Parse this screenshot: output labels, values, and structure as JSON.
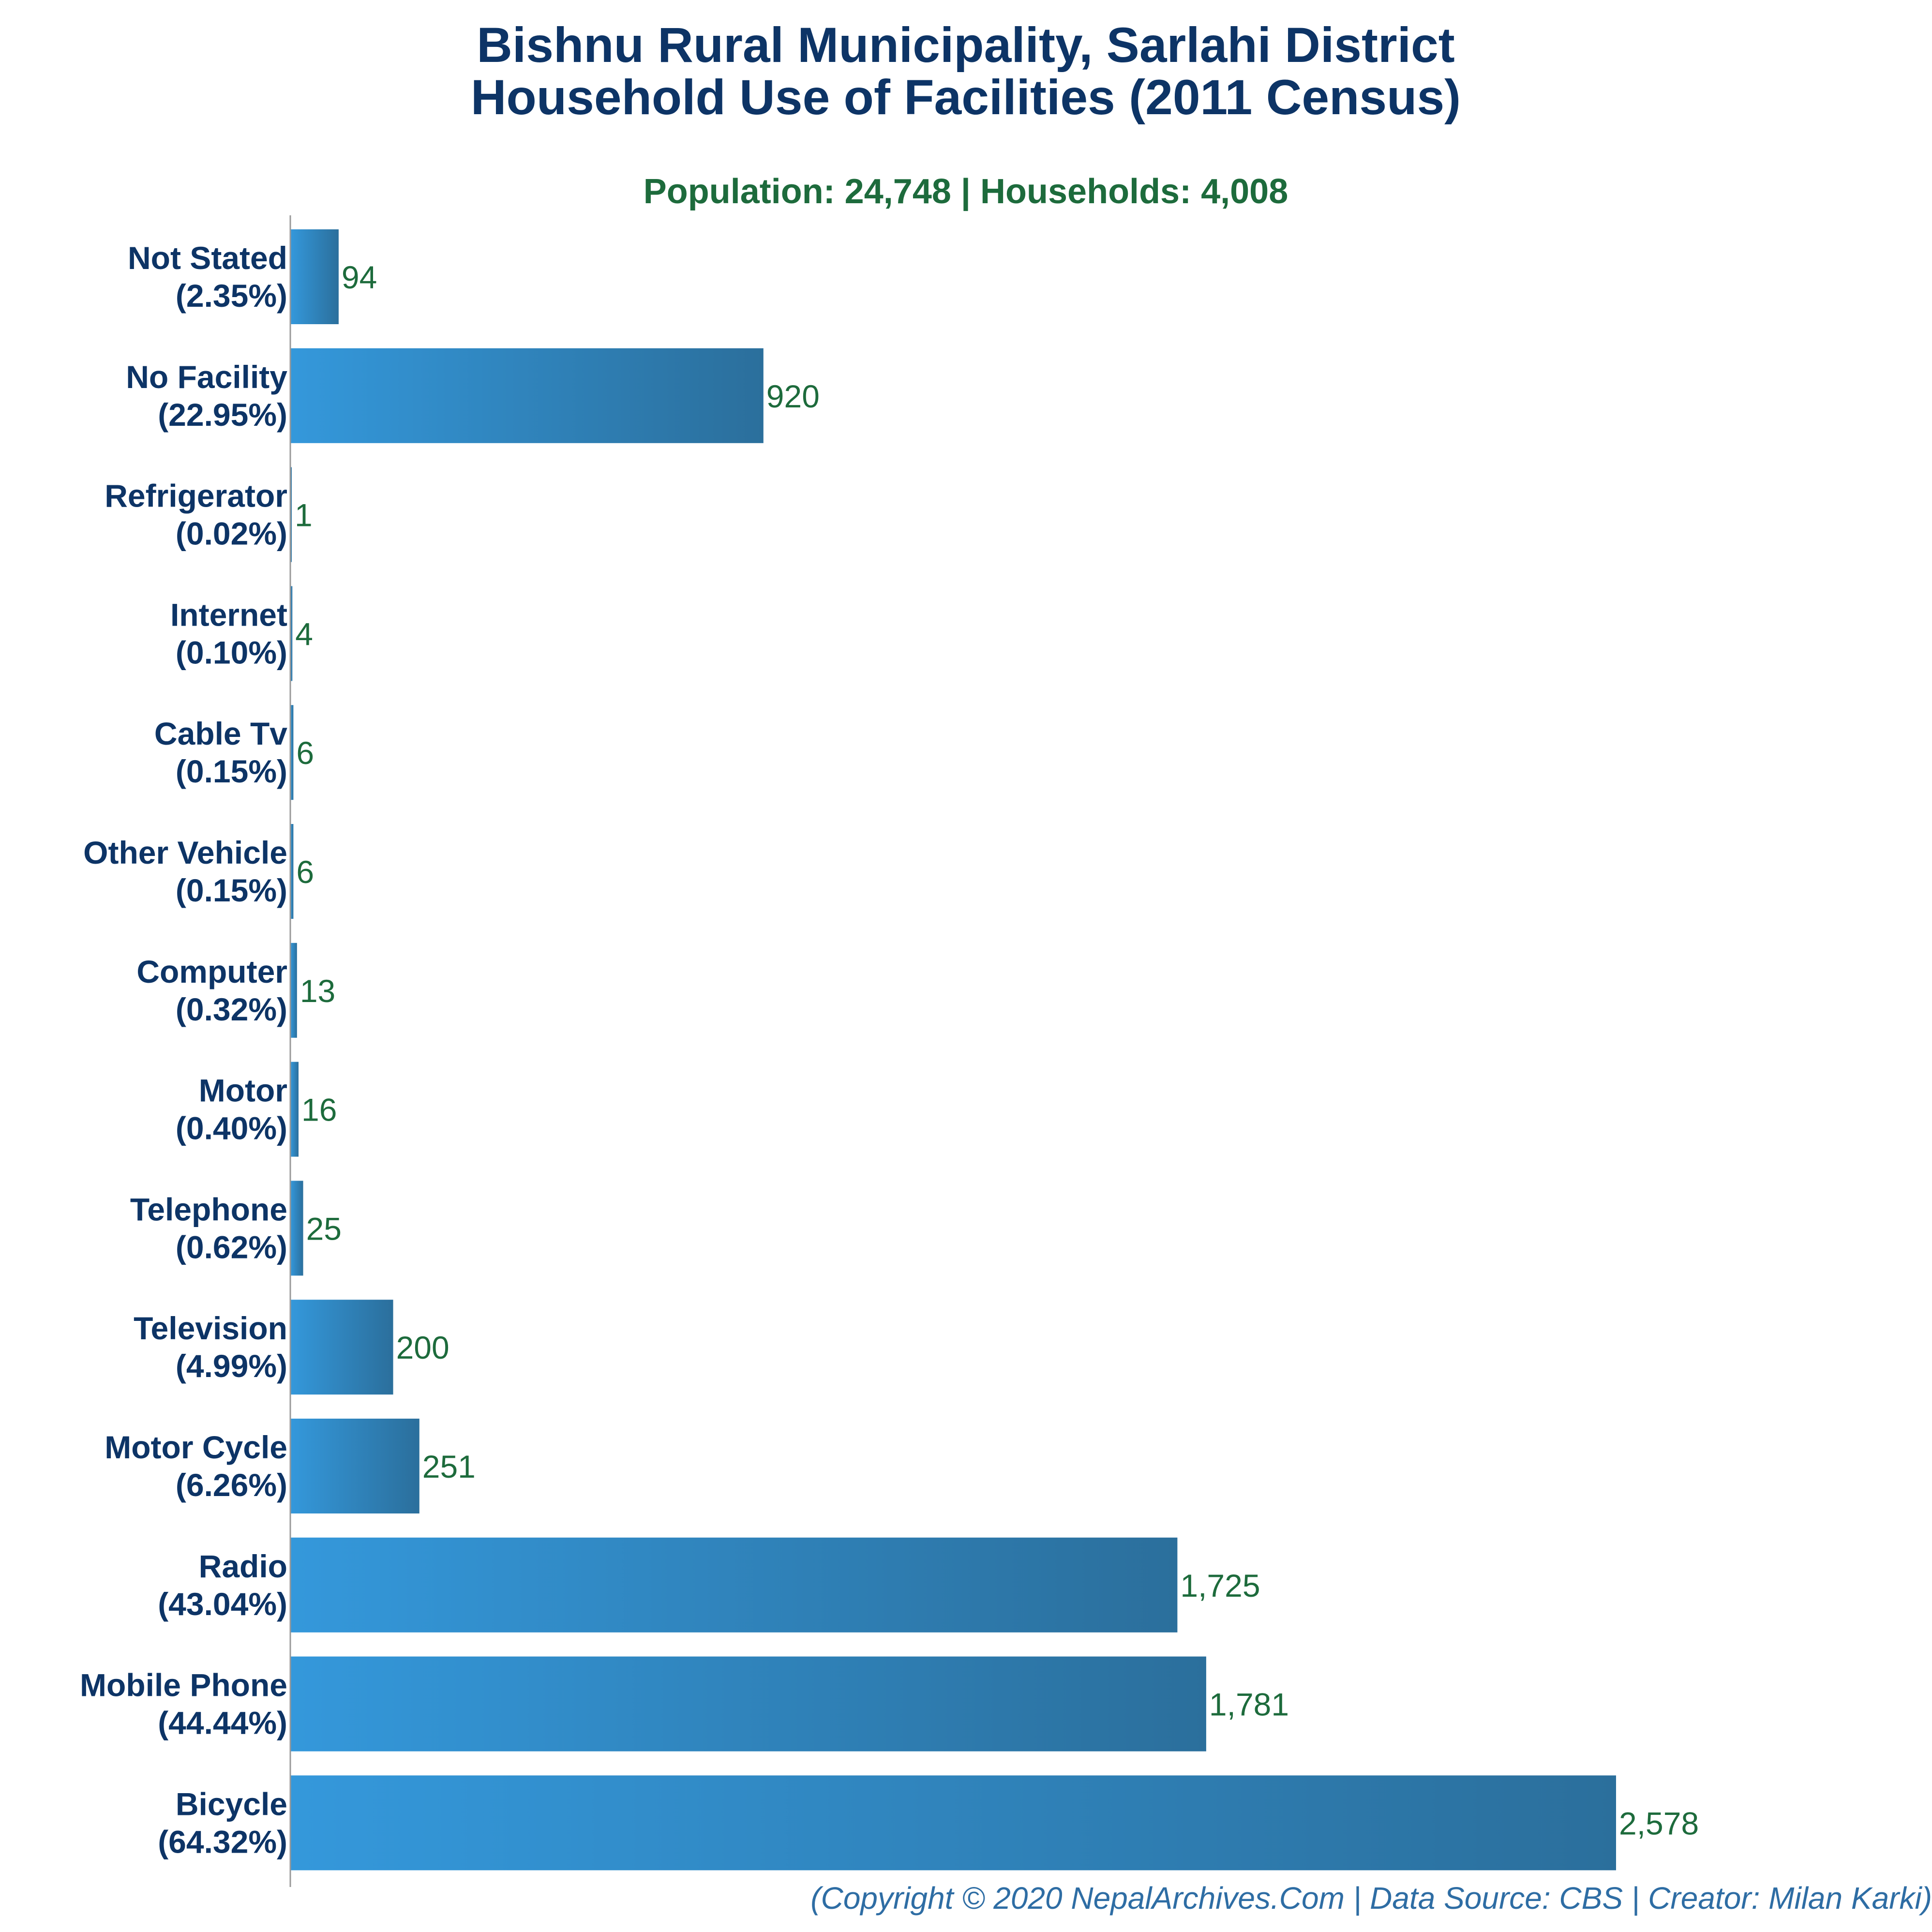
{
  "chart_data": {
    "type": "bar",
    "orientation": "horizontal",
    "title": "Bishnu Rural Municipality, Sarlahi District",
    "title_line2": "Household Use of Facilities (2011 Census)",
    "subtitle": "Population: 24,748 | Households: 4,008",
    "footer": "(Copyright © 2020 NepalArchives.Com | Data Source: CBS | Creator: Milan Karki)",
    "categories": [
      "Not Stated",
      "No Facility",
      "Refrigerator",
      "Internet",
      "Cable Tv",
      "Other Vehicle",
      "Computer",
      "Motor",
      "Telephone",
      "Television",
      "Motor Cycle",
      "Radio",
      "Mobile Phone",
      "Bicycle"
    ],
    "percents": [
      "(2.35%)",
      "(22.95%)",
      "(0.02%)",
      "(0.10%)",
      "(0.15%)",
      "(0.15%)",
      "(0.32%)",
      "(0.40%)",
      "(0.62%)",
      "(4.99%)",
      "(6.26%)",
      "(43.04%)",
      "(44.44%)",
      "(64.32%)"
    ],
    "values": [
      94,
      920,
      1,
      4,
      6,
      6,
      13,
      16,
      25,
      200,
      251,
      1725,
      1781,
      2578
    ],
    "value_labels": [
      "94",
      "920",
      "1",
      "4",
      "6",
      "6",
      "13",
      "16",
      "25",
      "200",
      "251",
      "1,725",
      "1,781",
      "2,578"
    ],
    "xlim": [
      0,
      2578
    ],
    "grid": false,
    "legend": "none",
    "colors": {
      "bar_start": "#3498db",
      "bar_end": "#2b6f9c",
      "title": "#0d3466",
      "subtitle": "#1d6b3c",
      "value_label": "#1d6b3c",
      "footer": "#2e6da4",
      "axis": "#999999"
    }
  }
}
